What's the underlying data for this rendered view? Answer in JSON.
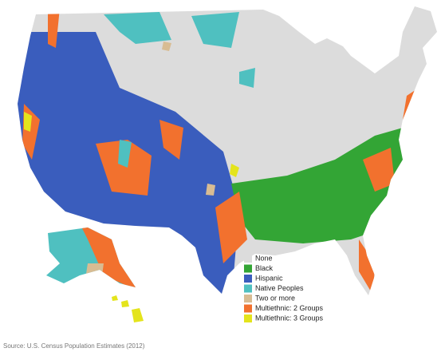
{
  "legend": [
    {
      "label": "None",
      "color": "#dcdcdc"
    },
    {
      "label": "Black",
      "color": "#33a535"
    },
    {
      "label": "Hispanic",
      "color": "#3a5dbd"
    },
    {
      "label": "Native Peoples",
      "color": "#4fc0c0"
    },
    {
      "label": "Two or more",
      "color": "#d8bc93"
    },
    {
      "label": "Multiethnic: 2 Groups",
      "color": "#f2712e"
    },
    {
      "label": "Multiethnic: 3 Groups",
      "color": "#e4e41c"
    }
  ],
  "source": "Source: U.S. Census Population Estimates (2012)"
}
